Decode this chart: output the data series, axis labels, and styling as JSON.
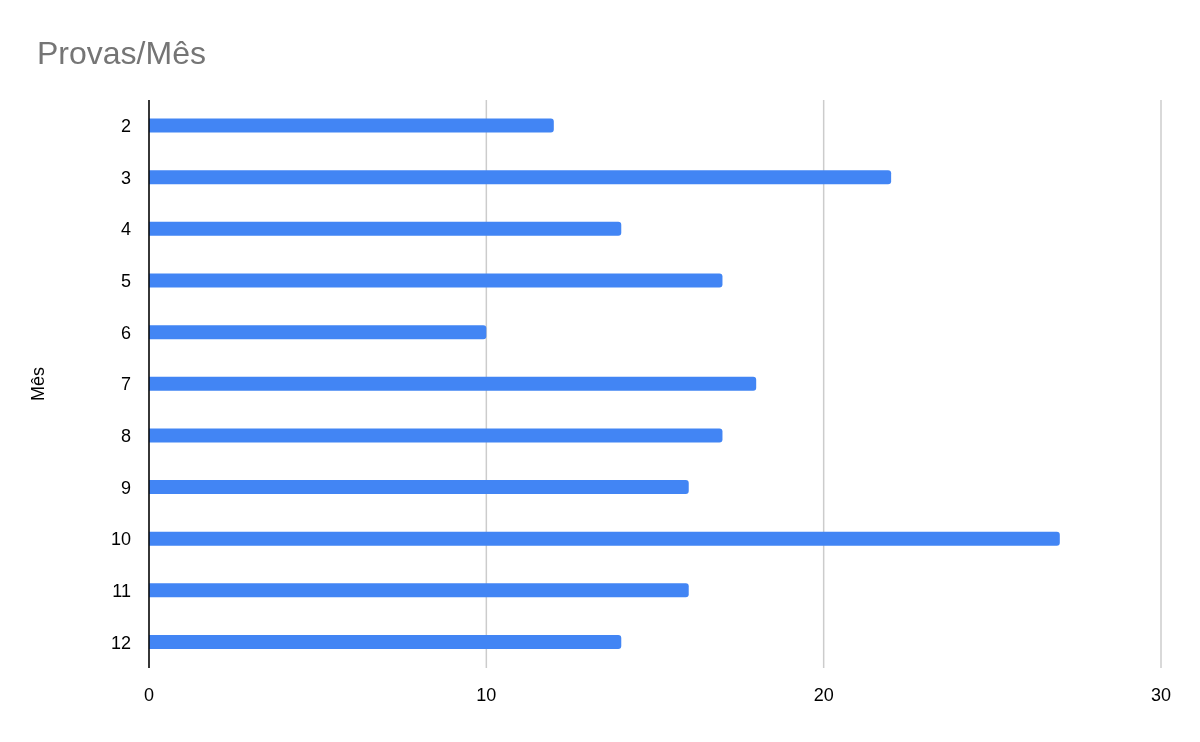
{
  "chart_data": {
    "type": "bar",
    "orientation": "horizontal",
    "title": "Provas/Mês",
    "ylabel": "Mês",
    "categories": [
      "2",
      "3",
      "4",
      "5",
      "6",
      "7",
      "8",
      "9",
      "10",
      "11",
      "12"
    ],
    "values": [
      12,
      22,
      14,
      17,
      10,
      18,
      17,
      16,
      27,
      16,
      14
    ],
    "color": "#4285f4",
    "xlim": [
      0,
      30
    ],
    "xticks": [
      0,
      10,
      20,
      30
    ],
    "grid": "x",
    "legend": false
  }
}
